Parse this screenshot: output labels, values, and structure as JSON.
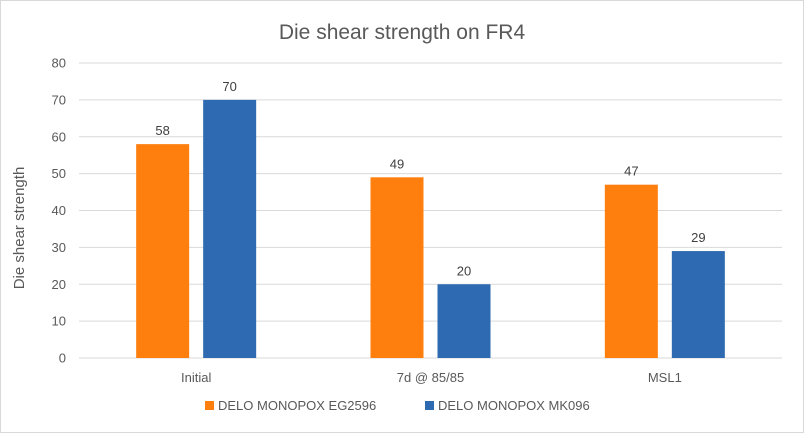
{
  "chart_data": {
    "type": "bar",
    "title": "Die shear strength on FR4",
    "xlabel": "",
    "ylabel": "Die shear strength",
    "categories": [
      "Initial",
      "7d @ 85/85",
      "MSL1"
    ],
    "series": [
      {
        "name": "DELO MONOPOX EG2596",
        "values": [
          58,
          49,
          47
        ],
        "color": "#ff7f0e"
      },
      {
        "name": "DELO MONOPOX MK096",
        "values": [
          70,
          20,
          29
        ],
        "color": "#2e6ab1"
      }
    ],
    "ylim": [
      0,
      80
    ],
    "yticks": [
      0,
      10,
      20,
      30,
      40,
      50,
      60,
      70,
      80
    ],
    "grid": true,
    "legend": "bottom"
  }
}
